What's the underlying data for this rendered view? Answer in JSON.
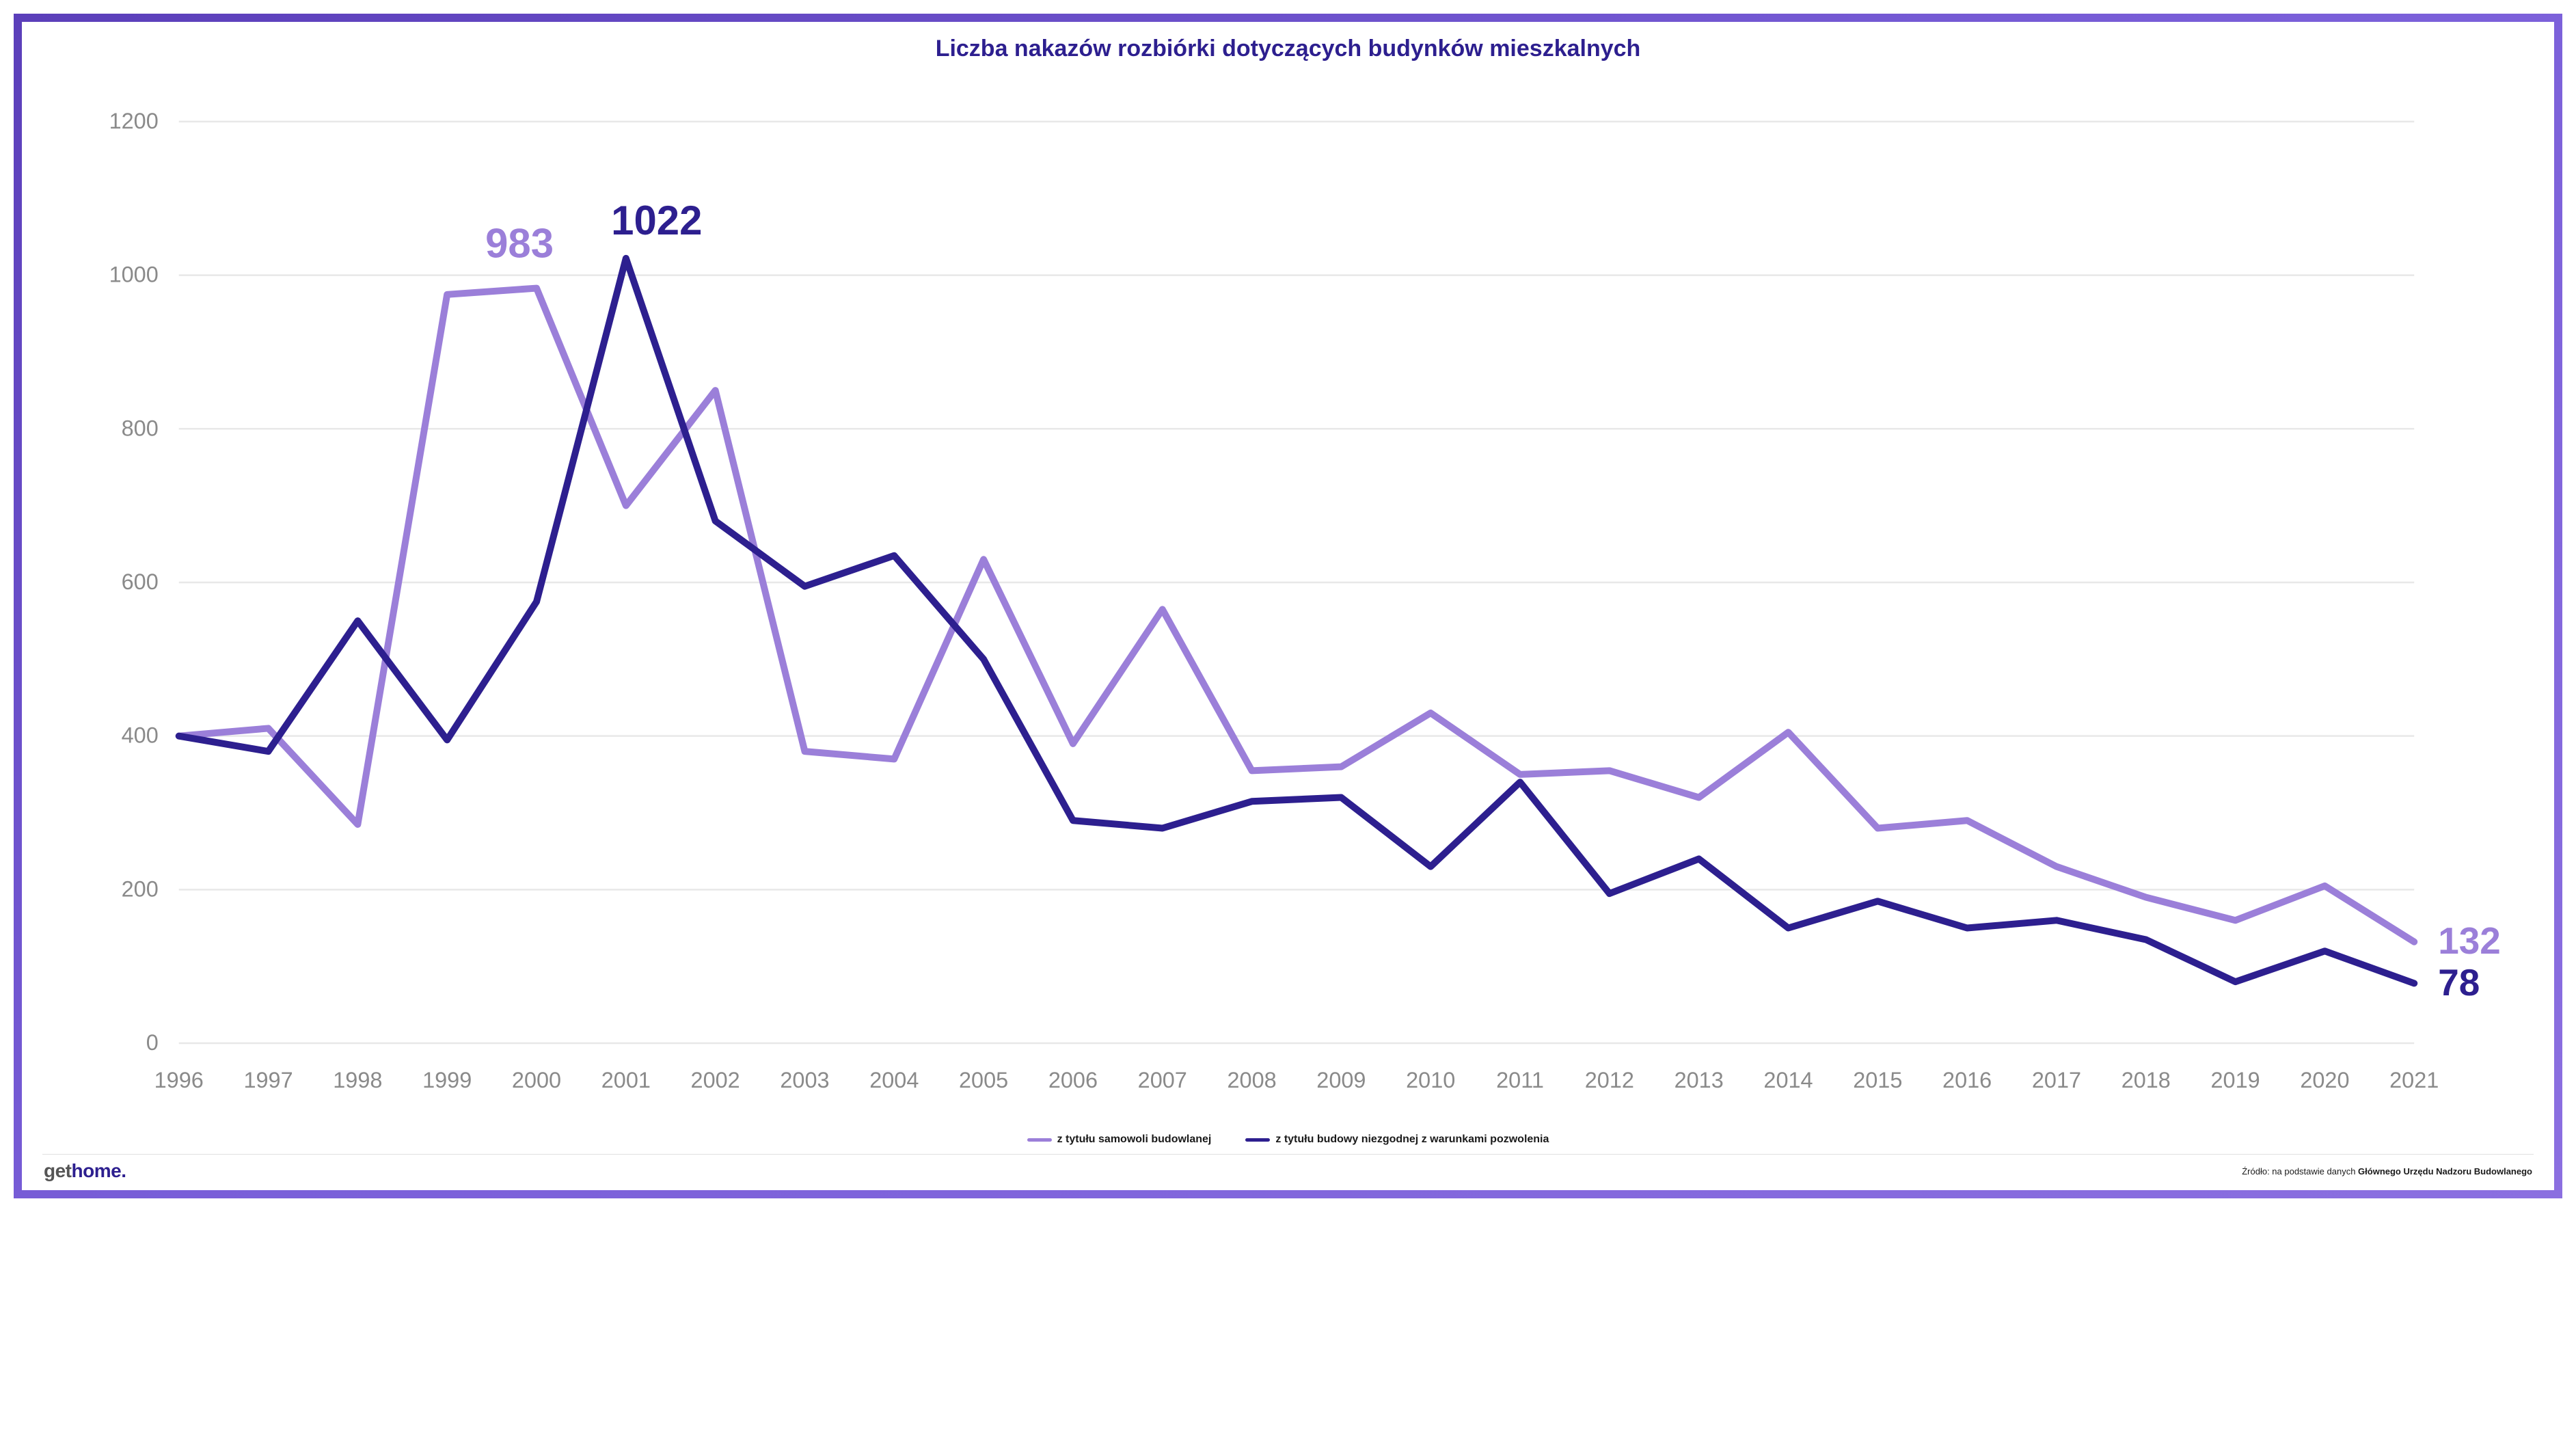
{
  "title": "Liczba nakazów rozbiórki dotyczących budynków mieszkalnych",
  "chart": {
    "type": "line",
    "background_color": "#ffffff",
    "grid_color": "#e8e8e8",
    "axis_label_color": "#8a8a8a",
    "axis_label_fontsize": 13,
    "ylim": [
      0,
      1200
    ],
    "ytick_step": 200,
    "yticks": [
      0,
      200,
      400,
      600,
      800,
      1000,
      1200
    ],
    "x_labels": [
      "1996",
      "1997",
      "1998",
      "1999",
      "2000",
      "2001",
      "2002",
      "2003",
      "2004",
      "2005",
      "2006",
      "2007",
      "2008",
      "2009",
      "2010",
      "2011",
      "2012",
      "2013",
      "2014",
      "2015",
      "2016",
      "2017",
      "2018",
      "2019",
      "2020",
      "2021"
    ],
    "line_width": 4,
    "series": [
      {
        "id": "samowola",
        "name": "z tytułu samowoli budowlanej",
        "color": "#9b7fd9",
        "values": [
          400,
          410,
          285,
          975,
          983,
          700,
          850,
          380,
          370,
          630,
          390,
          565,
          355,
          360,
          430,
          350,
          355,
          320,
          405,
          280,
          290,
          230,
          190,
          160,
          205,
          132
        ],
        "peak_label": {
          "text": "983",
          "x_index": 4,
          "y": 983,
          "dx": -10,
          "dy": -18,
          "fontsize": 24
        },
        "end_label": {
          "text": "132",
          "fontsize": 22
        }
      },
      {
        "id": "niezgodna",
        "name": "z tytułu budowy niezgodnej z warunkami pozwolenia",
        "color": "#2d1f8f",
        "values": [
          400,
          380,
          550,
          395,
          575,
          1022,
          680,
          595,
          635,
          500,
          290,
          280,
          315,
          320,
          230,
          340,
          195,
          240,
          150,
          185,
          150,
          160,
          135,
          80,
          120,
          78
        ],
        "peak_label": {
          "text": "1022",
          "x_index": 5,
          "y": 1022,
          "dx": 18,
          "dy": -14,
          "fontsize": 24
        },
        "end_label": {
          "text": "78",
          "fontsize": 22
        }
      }
    ]
  },
  "legend": {
    "items": [
      {
        "label": "z tytułu samowoli budowlanej",
        "color": "#9b7fd9"
      },
      {
        "label": "z tytułu budowy niezgodnej z warunkami pozwolenia",
        "color": "#2d1f8f"
      }
    ]
  },
  "logo": {
    "prefix": "get",
    "main": "home",
    "suffix": "."
  },
  "source": {
    "prefix": "Źródło: na podstawie danych ",
    "bold": "Głównego Urzędu Nadzoru Budowlanego"
  },
  "frame_border_color": "#5b3fba"
}
